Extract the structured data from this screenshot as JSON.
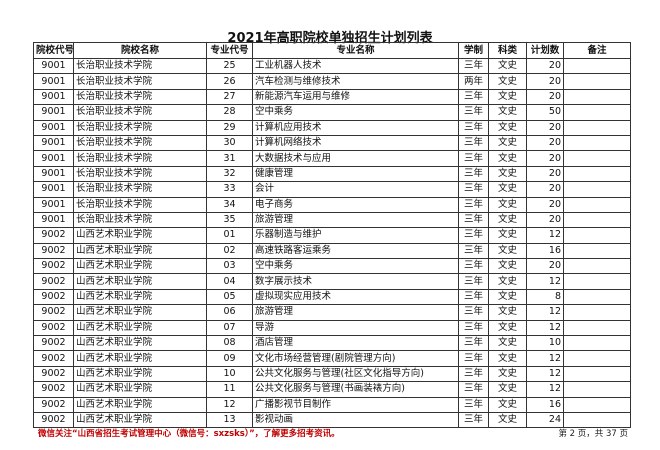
{
  "title": "2021年高职院校单独招生计划列表",
  "headers": [
    "院校代号",
    "院校名称",
    "专业代号",
    "专业名称",
    "学制",
    "科类",
    "计划数",
    "备注"
  ],
  "rows": [
    [
      "9001",
      "长治职业技术学院",
      "25",
      "工业机器人技术",
      "三年",
      "文史",
      "20",
      ""
    ],
    [
      "9001",
      "长治职业技术学院",
      "26",
      "汽车检测与维修技术",
      "两年",
      "文史",
      "20",
      ""
    ],
    [
      "9001",
      "长治职业技术学院",
      "27",
      "新能源汽车运用与维修",
      "三年",
      "文史",
      "20",
      ""
    ],
    [
      "9001",
      "长治职业技术学院",
      "28",
      "空中乘务",
      "三年",
      "文史",
      "50",
      ""
    ],
    [
      "9001",
      "长治职业技术学院",
      "29",
      "计算机应用技术",
      "三年",
      "文史",
      "20",
      ""
    ],
    [
      "9001",
      "长治职业技术学院",
      "30",
      "计算机网络技术",
      "三年",
      "文史",
      "20",
      ""
    ],
    [
      "9001",
      "长治职业技术学院",
      "31",
      "大数据技术与应用",
      "三年",
      "文史",
      "20",
      ""
    ],
    [
      "9001",
      "长治职业技术学院",
      "32",
      "健康管理",
      "三年",
      "文史",
      "20",
      ""
    ],
    [
      "9001",
      "长治职业技术学院",
      "33",
      "会计",
      "三年",
      "文史",
      "20",
      ""
    ],
    [
      "9001",
      "长治职业技术学院",
      "34",
      "电子商务",
      "三年",
      "文史",
      "20",
      ""
    ],
    [
      "9001",
      "长治职业技术学院",
      "35",
      "旅游管理",
      "三年",
      "文史",
      "20",
      ""
    ],
    [
      "9002",
      "山西艺术职业学院",
      "01",
      "乐器制造与维护",
      "三年",
      "文史",
      "12",
      ""
    ],
    [
      "9002",
      "山西艺术职业学院",
      "02",
      "高速铁路客运乘务",
      "三年",
      "文史",
      "16",
      ""
    ],
    [
      "9002",
      "山西艺术职业学院",
      "03",
      "空中乘务",
      "三年",
      "文史",
      "20",
      ""
    ],
    [
      "9002",
      "山西艺术职业学院",
      "04",
      "数字展示技术",
      "三年",
      "文史",
      "12",
      ""
    ],
    [
      "9002",
      "山西艺术职业学院",
      "05",
      "虚拟现实应用技术",
      "三年",
      "文史",
      "8",
      ""
    ],
    [
      "9002",
      "山西艺术职业学院",
      "06",
      "旅游管理",
      "三年",
      "文史",
      "12",
      ""
    ],
    [
      "9002",
      "山西艺术职业学院",
      "07",
      "导游",
      "三年",
      "文史",
      "12",
      ""
    ],
    [
      "9002",
      "山西艺术职业学院",
      "08",
      "酒店管理",
      "三年",
      "文史",
      "10",
      ""
    ],
    [
      "9002",
      "山西艺术职业学院",
      "09",
      "文化市场经营管理(剧院管理方向)",
      "三年",
      "文史",
      "12",
      ""
    ],
    [
      "9002",
      "山西艺术职业学院",
      "10",
      "公共文化服务与管理(社区文化指导方向)",
      "三年",
      "文史",
      "12",
      ""
    ],
    [
      "9002",
      "山西艺术职业学院",
      "11",
      "公共文化服务与管理(书画装裱方向)",
      "三年",
      "文史",
      "12",
      ""
    ],
    [
      "9002",
      "山西艺术职业学院",
      "12",
      "广播影视节目制作",
      "三年",
      "文史",
      "16",
      ""
    ],
    [
      "9002",
      "山西艺术职业学院",
      "13",
      "影视动画",
      "三年",
      "文史",
      "24",
      ""
    ]
  ],
  "footer": "微信关注“山西省招生考试管理中心（微信号：sxzsks）”，了解更多招考资讯。",
  "page_info": "第 2 页，共 37 页",
  "colors": {
    "footer_text": "#c00000"
  }
}
